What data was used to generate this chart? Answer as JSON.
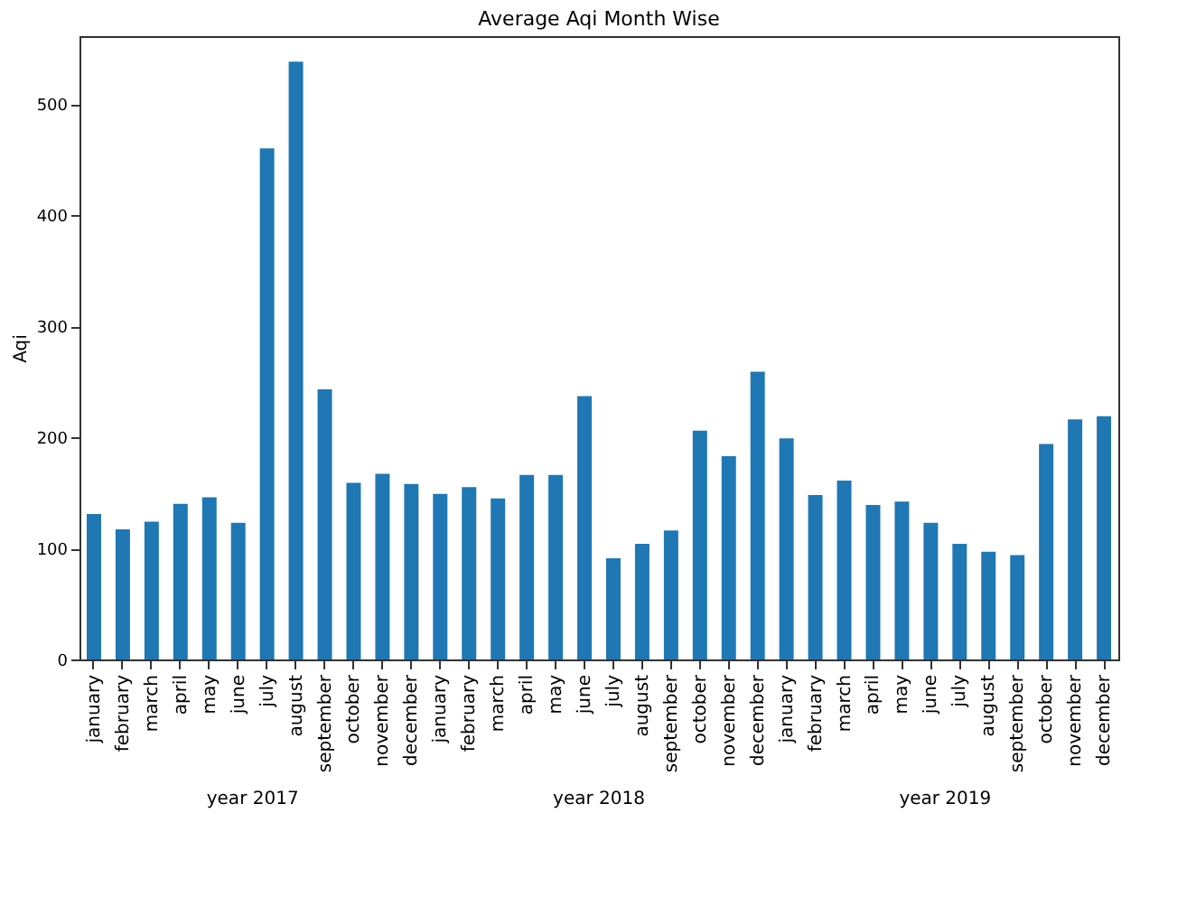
{
  "chart_data": {
    "type": "bar",
    "title": "Average Aqi Month Wise",
    "ylabel": "Aqi",
    "categories": [
      "january",
      "february",
      "march",
      "april",
      "may",
      "june",
      "july",
      "august",
      "september",
      "october",
      "november",
      "december",
      "january",
      "february",
      "march",
      "april",
      "may",
      "june",
      "july",
      "august",
      "september",
      "october",
      "november",
      "december",
      "january",
      "february",
      "march",
      "april",
      "may",
      "june",
      "july",
      "august",
      "september",
      "october",
      "november",
      "december"
    ],
    "values": [
      131,
      117,
      124,
      140,
      146,
      123,
      460,
      538,
      243,
      159,
      167,
      158,
      149,
      155,
      145,
      166,
      166,
      237,
      91,
      104,
      116,
      206,
      183,
      259,
      199,
      148,
      161,
      139,
      142,
      123,
      104,
      97,
      94,
      194,
      216,
      219
    ],
    "color": "#1f77b4",
    "ylim": [
      0,
      561
    ],
    "yticks": [
      0,
      100,
      200,
      300,
      400,
      500
    ],
    "grid": false,
    "annotations": [
      "year 2017",
      "year 2018",
      "year 2019"
    ]
  }
}
